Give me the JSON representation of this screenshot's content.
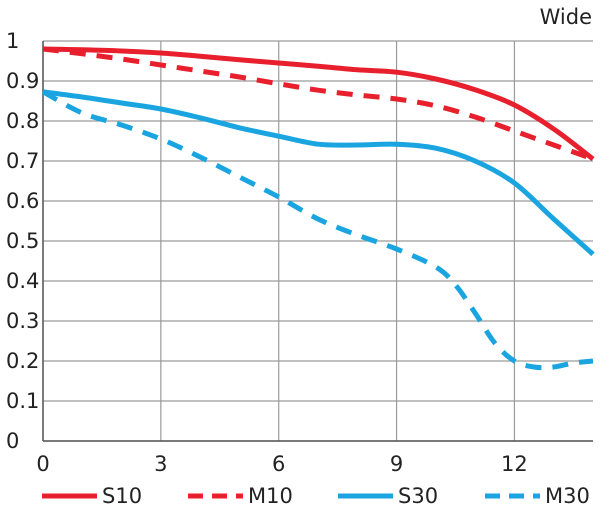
{
  "chart_data": {
    "type": "line",
    "title": "Wide",
    "xlabel": "",
    "ylabel": "",
    "xlim": [
      0,
      14
    ],
    "ylim": [
      0,
      1
    ],
    "grid": true,
    "legend_position": "bottom",
    "x_ticks": [
      0,
      3,
      6,
      9,
      12
    ],
    "x_tick_labels": [
      "0",
      "3",
      "6",
      "9",
      "12"
    ],
    "y_ticks": [
      0,
      0.1,
      0.2,
      0.3,
      0.4,
      0.5,
      0.6,
      0.7,
      0.8,
      0.9,
      1
    ],
    "y_tick_labels": [
      "0",
      "0.1",
      "0.2",
      "0.3",
      "0.4",
      "0.5",
      "0.6",
      "0.7",
      "0.8",
      "0.9",
      "1"
    ],
    "series": [
      {
        "name": "S10",
        "color": "#e8202e",
        "dash": "solid",
        "x": [
          0,
          1,
          2,
          3,
          4,
          5,
          6,
          7,
          8,
          9,
          10,
          11,
          12,
          13,
          14
        ],
        "y": [
          0.98,
          0.978,
          0.975,
          0.97,
          0.962,
          0.953,
          0.945,
          0.937,
          0.928,
          0.922,
          0.905,
          0.878,
          0.84,
          0.78,
          0.705
        ]
      },
      {
        "name": "M10",
        "color": "#e8202e",
        "dash": "dashed",
        "x": [
          0,
          1,
          2,
          3,
          4,
          5,
          6,
          7,
          8,
          9,
          10,
          11,
          12,
          13,
          14
        ],
        "y": [
          0.98,
          0.968,
          0.955,
          0.94,
          0.925,
          0.91,
          0.893,
          0.877,
          0.865,
          0.855,
          0.838,
          0.81,
          0.775,
          0.74,
          0.705
        ]
      },
      {
        "name": "S30",
        "color": "#1aa5e0",
        "dash": "solid",
        "x": [
          0,
          1,
          2,
          3,
          4,
          5,
          6,
          7,
          8,
          9,
          10,
          11,
          12,
          13,
          14
        ],
        "y": [
          0.873,
          0.86,
          0.845,
          0.83,
          0.808,
          0.783,
          0.762,
          0.742,
          0.74,
          0.742,
          0.732,
          0.7,
          0.645,
          0.555,
          0.467
        ]
      },
      {
        "name": "M30",
        "color": "#1aa5e0",
        "dash": "dashed",
        "x": [
          0,
          1,
          2,
          3,
          4,
          5,
          6,
          7,
          8,
          9,
          10,
          10.5,
          11,
          11.5,
          12,
          12.5,
          13,
          13.5,
          14
        ],
        "y": [
          0.873,
          0.82,
          0.79,
          0.755,
          0.71,
          0.66,
          0.61,
          0.555,
          0.515,
          0.48,
          0.435,
          0.39,
          0.32,
          0.245,
          0.2,
          0.185,
          0.185,
          0.195,
          0.2
        ]
      }
    ]
  }
}
